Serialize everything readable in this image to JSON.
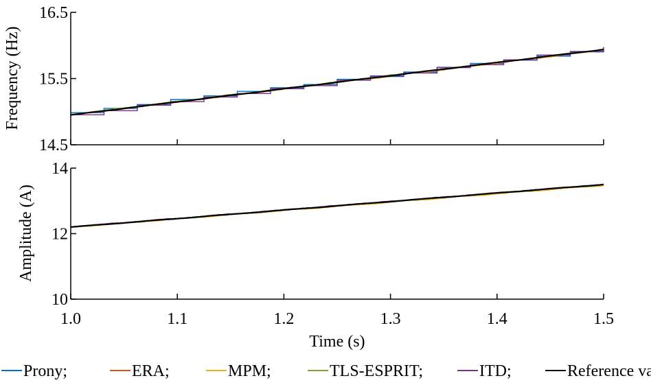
{
  "chart_data": [
    {
      "type": "line",
      "ylabel": "Frequency (Hz)",
      "xlim": [
        1.0,
        1.5
      ],
      "ylim": [
        14.5,
        16.5
      ],
      "yticks": [
        "14.5",
        "15.5",
        "16.5"
      ],
      "grid": false,
      "series": [
        {
          "name": "Prony",
          "color": "#0072BD",
          "style": "staircase",
          "x": [
            1.0,
            1.5
          ],
          "y": [
            14.96,
            15.94
          ]
        },
        {
          "name": "ERA",
          "color": "#D95319",
          "style": "noisy",
          "x": [
            1.0,
            1.5
          ],
          "y": [
            14.95,
            15.93
          ]
        },
        {
          "name": "MPM",
          "color": "#EDB120",
          "style": "noisy",
          "x": [
            1.0,
            1.5
          ],
          "y": [
            14.95,
            15.93
          ]
        },
        {
          "name": "TLS-ESPRIT",
          "color": "#77AC30",
          "style": "noisy",
          "x": [
            1.0,
            1.5
          ],
          "y": [
            14.96,
            15.94
          ]
        },
        {
          "name": "ITD",
          "color": "#7E2F8E",
          "style": "staircase",
          "x": [
            1.0,
            1.5
          ],
          "y": [
            14.93,
            15.94
          ]
        },
        {
          "name": "Reference value",
          "color": "#000000",
          "style": "smooth",
          "x": [
            1.0,
            1.5
          ],
          "y": [
            14.95,
            15.94
          ]
        }
      ]
    },
    {
      "type": "line",
      "ylabel": "Amplitude (A)",
      "xlabel": "Time (s)",
      "xlim": [
        1.0,
        1.5
      ],
      "ylim": [
        10,
        14
      ],
      "xticks": [
        "1.0",
        "1.1",
        "1.2",
        "1.3",
        "1.4",
        "1.5"
      ],
      "yticks": [
        "10",
        "12",
        "14"
      ],
      "grid": false,
      "series": [
        {
          "name": "Prony",
          "color": "#0072BD",
          "style": "noisy",
          "x": [
            1.0,
            1.5
          ],
          "y": [
            12.2,
            13.5
          ]
        },
        {
          "name": "ERA",
          "color": "#D95319",
          "style": "noisy",
          "x": [
            1.0,
            1.5
          ],
          "y": [
            12.2,
            13.48
          ]
        },
        {
          "name": "MPM",
          "color": "#EDB120",
          "style": "noisy",
          "x": [
            1.0,
            1.5
          ],
          "y": [
            12.19,
            13.47
          ]
        },
        {
          "name": "TLS-ESPRIT",
          "color": "#77AC30",
          "style": "noisy",
          "x": [
            1.0,
            1.5
          ],
          "y": [
            12.2,
            13.5
          ]
        },
        {
          "name": "ITD",
          "color": "#7E2F8E",
          "style": "noisy",
          "x": [
            1.0,
            1.5
          ],
          "y": [
            12.21,
            13.5
          ]
        },
        {
          "name": "Reference value",
          "color": "#000000",
          "style": "smooth",
          "x": [
            1.0,
            1.5
          ],
          "y": [
            12.2,
            13.5
          ]
        }
      ]
    }
  ],
  "legend": {
    "placement": "bottom",
    "items": [
      {
        "label": "Prony;",
        "color": "#0072BD"
      },
      {
        "label": "ERA;",
        "color": "#D95319"
      },
      {
        "label": "MPM;",
        "color": "#EDB120"
      },
      {
        "label": "TLS-ESPRIT;",
        "color": "#77AC30"
      },
      {
        "label": "ITD;",
        "color": "#7E2F8E"
      },
      {
        "label": "Reference value",
        "color": "#000000"
      }
    ]
  }
}
